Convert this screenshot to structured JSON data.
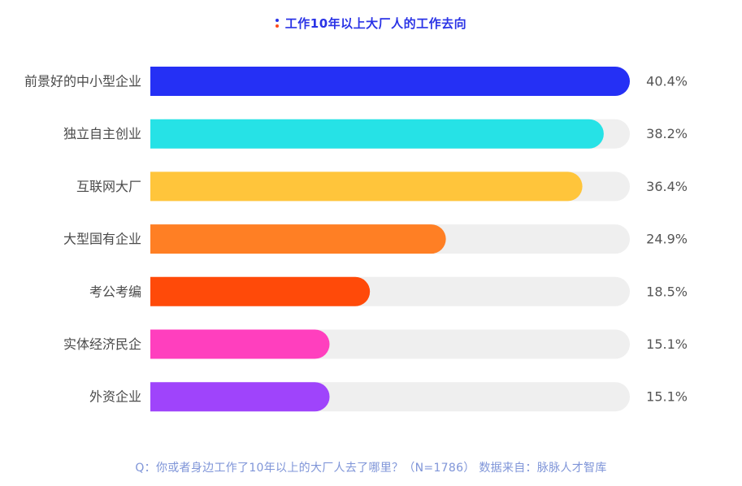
{
  "chart_data": {
    "type": "bar",
    "orientation": "horizontal",
    "title": "工作10年以上大厂人的工作去向",
    "categories": [
      "前景好的中小型企业",
      "独立自主创业",
      "互联网大厂",
      "大型国有企业",
      "考公考编",
      "实体经济民企",
      "外资企业"
    ],
    "values": [
      40.4,
      38.2,
      36.4,
      24.9,
      18.5,
      15.1,
      15.1
    ],
    "value_labels": [
      "40.4%",
      "38.2%",
      "36.4%",
      "24.9%",
      "18.5%",
      "15.1%",
      "15.1%"
    ],
    "value_max": 40.4,
    "colors": [
      "#2530f5",
      "#26e2e6",
      "#ffc53b",
      "#ff7f24",
      "#ff4a09",
      "#ff3fbe",
      "#9f44fb"
    ],
    "track_color": "#efefef",
    "grid": false,
    "legend": "none"
  },
  "title_dot_colors": [
    "#2a33e6",
    "#ff4a1a"
  ],
  "footer": "Q：你或者身边工作了10年以上的大厂人去了哪里？（N=1786） 数据来自：脉脉人才智库"
}
